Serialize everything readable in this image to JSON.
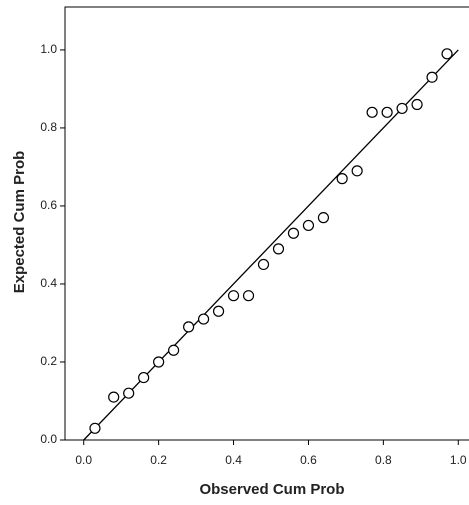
{
  "chart_data": {
    "type": "scatter",
    "x_label": "Observed Cum Prob",
    "y_label": "Expected Cum Prob",
    "x": [
      0.03,
      0.08,
      0.12,
      0.16,
      0.2,
      0.24,
      0.28,
      0.32,
      0.36,
      0.4,
      0.44,
      0.48,
      0.52,
      0.56,
      0.6,
      0.64,
      0.69,
      0.73,
      0.77,
      0.81,
      0.85,
      0.89,
      0.93,
      0.97
    ],
    "values": [
      0.03,
      0.11,
      0.12,
      0.16,
      0.2,
      0.23,
      0.29,
      0.31,
      0.33,
      0.37,
      0.37,
      0.45,
      0.49,
      0.53,
      0.55,
      0.57,
      0.67,
      0.69,
      0.84,
      0.84,
      0.85,
      0.86,
      0.93,
      0.99
    ],
    "color": "#000000",
    "reference_line": {
      "x": [
        0,
        1
      ],
      "y": [
        0,
        1
      ]
    },
    "xlim": [
      -0.05,
      1.05
    ],
    "ylim": [
      0,
      1.11
    ],
    "xticks": [
      {
        "value": 0,
        "label": "0.0"
      },
      0.2,
      0.4,
      0.6,
      0.8,
      {
        "value": 1,
        "label": "1.0"
      }
    ],
    "yticks": [
      {
        "value": 0,
        "label": "0.0"
      },
      0.2,
      0.4,
      0.6,
      0.8,
      {
        "value": 1,
        "label": "1.0"
      }
    ]
  }
}
